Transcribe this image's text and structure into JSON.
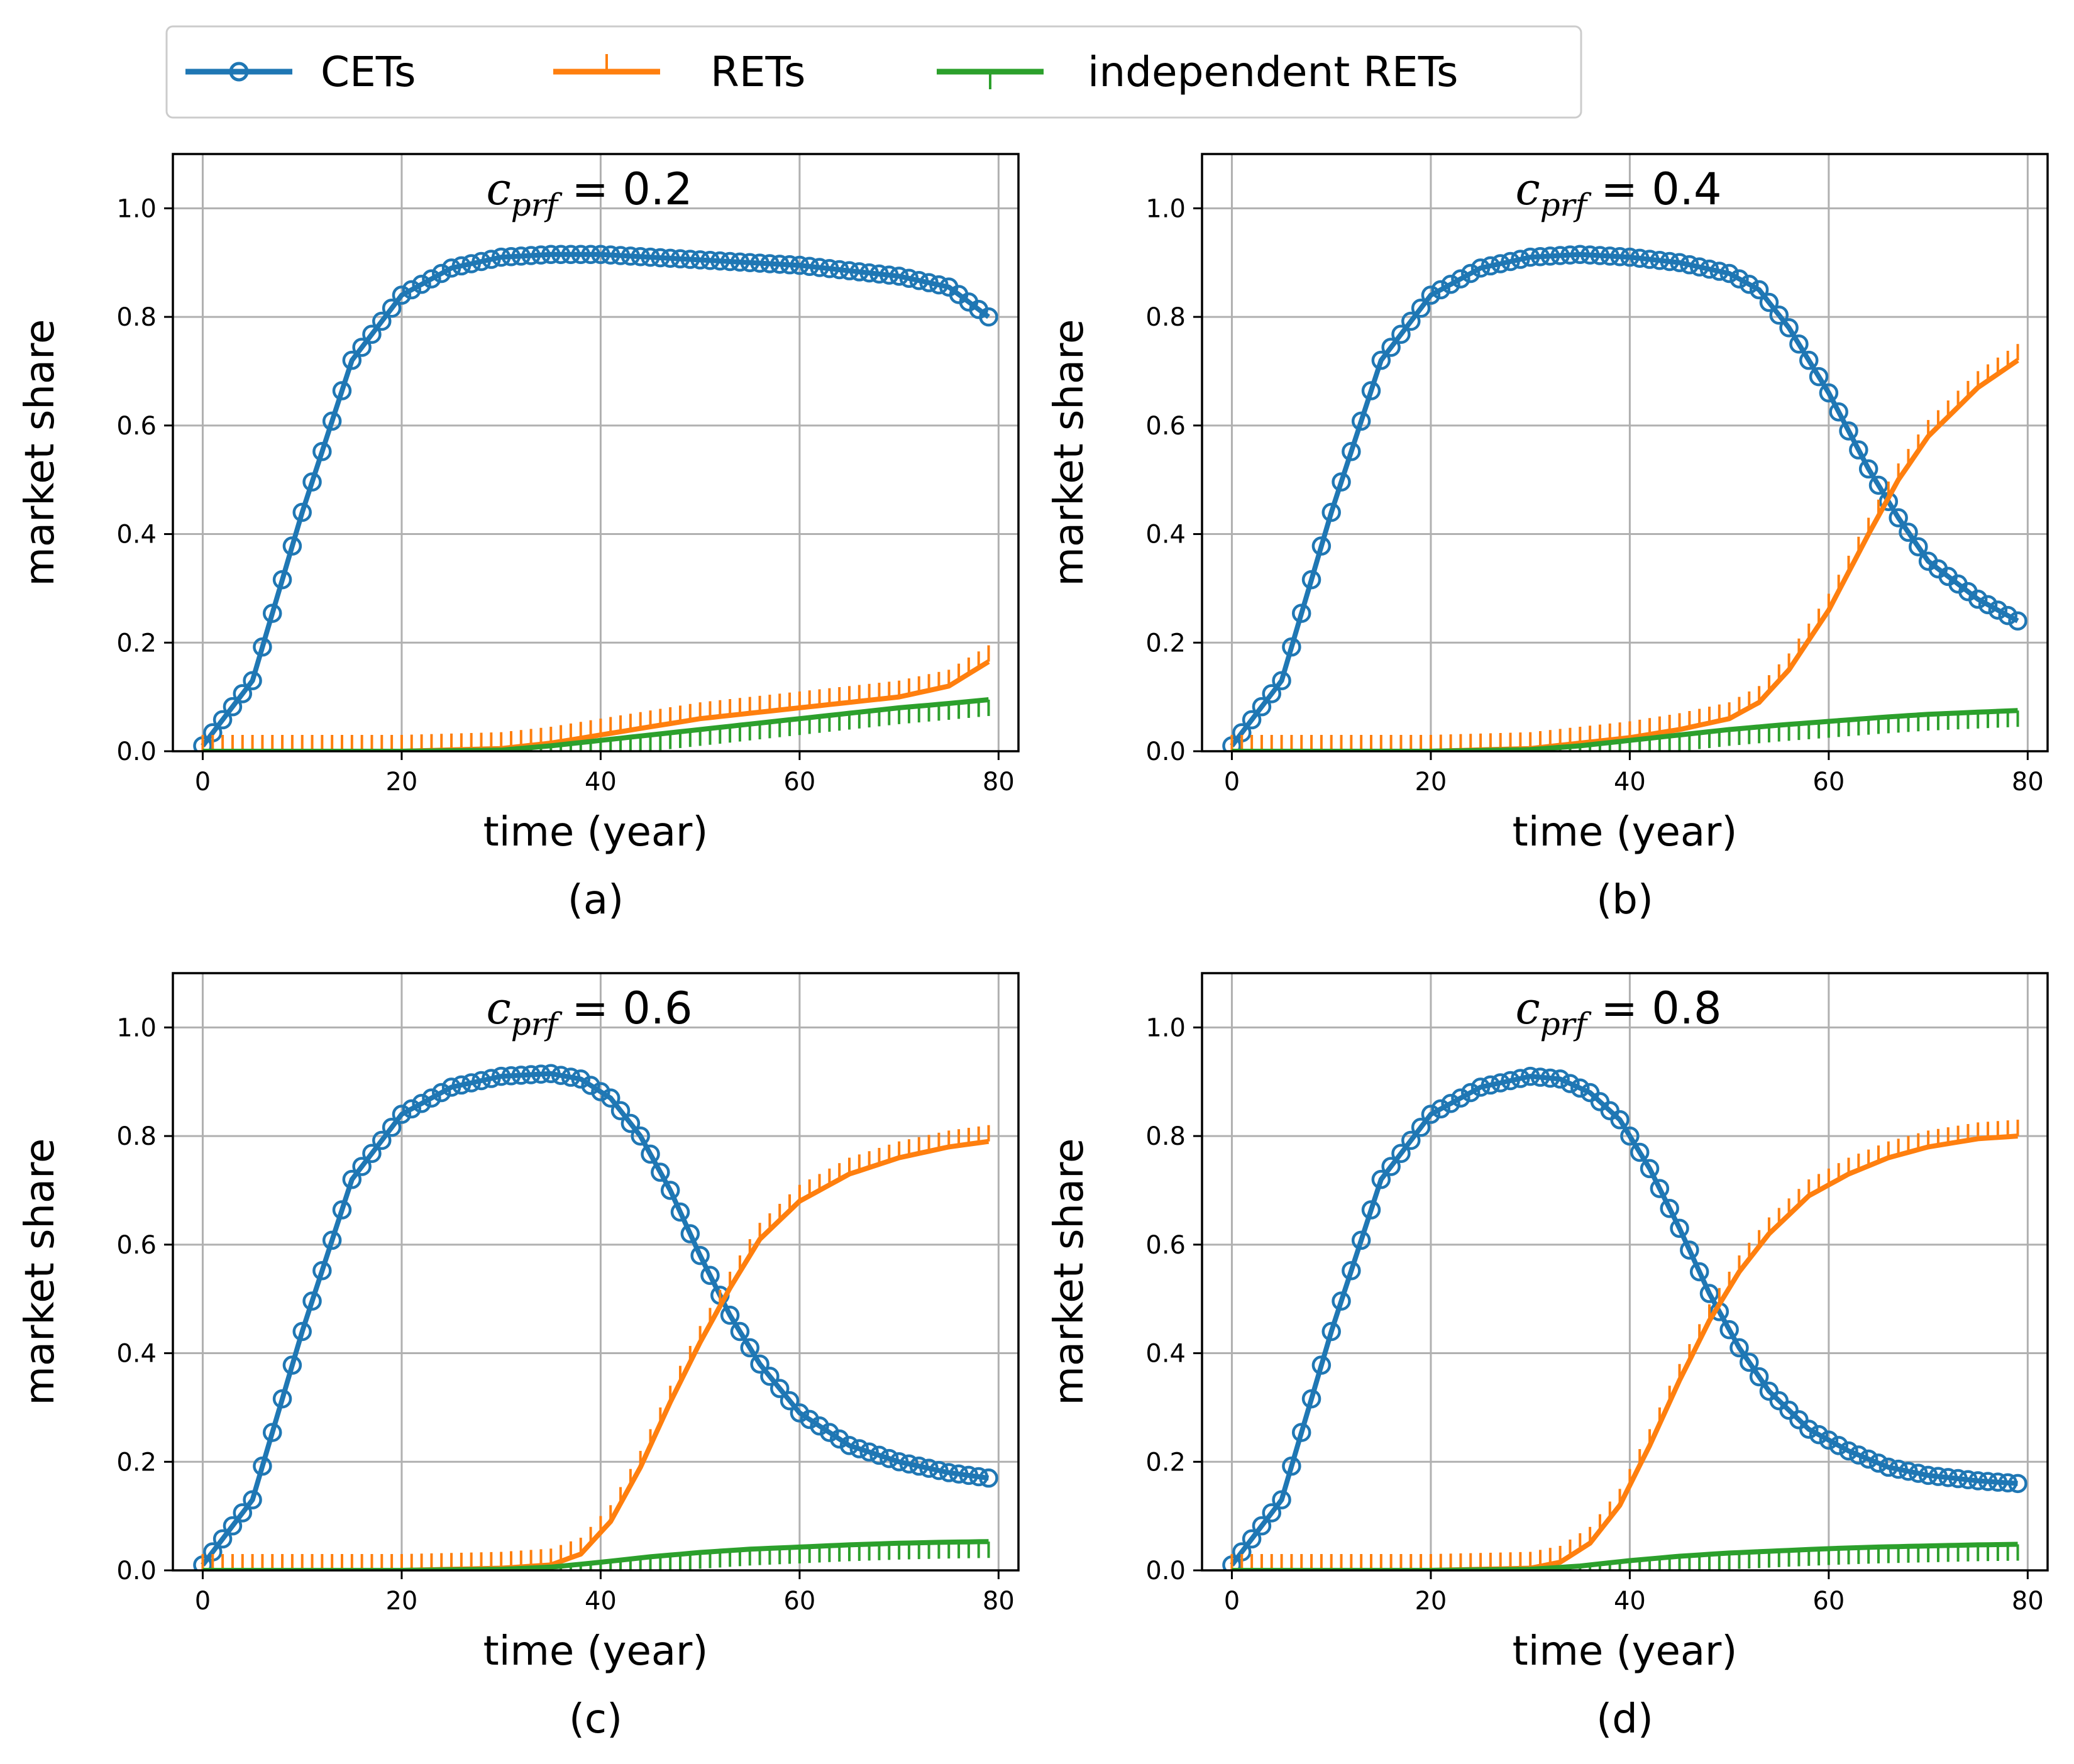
{
  "legend": {
    "items": [
      {
        "label": "CETs",
        "color": "#1f77b4",
        "marker": "circle"
      },
      {
        "label": "RETs",
        "color": "#ff7f0e",
        "marker": "tick-up"
      },
      {
        "label": "independent RETs",
        "color": "#2ca02c",
        "marker": "tick-down"
      }
    ]
  },
  "chart_data": [
    {
      "type": "line",
      "panel_label": "(a)",
      "title_var": "c",
      "title_sub": "prf",
      "title_val": "0.2",
      "xlabel": "time (year)",
      "ylabel": "market share",
      "xlim": [
        -3,
        82
      ],
      "ylim": [
        0,
        1.1
      ],
      "xticks": [
        0,
        20,
        40,
        60,
        80
      ],
      "yticks": [
        0.0,
        0.2,
        0.4,
        0.6,
        0.8,
        1.0
      ],
      "grid": true,
      "series": [
        {
          "name": "CETs",
          "x": [
            0,
            5,
            10,
            15,
            20,
            25,
            30,
            35,
            40,
            45,
            50,
            55,
            60,
            65,
            70,
            75,
            79
          ],
          "y": [
            0.01,
            0.13,
            0.44,
            0.72,
            0.84,
            0.89,
            0.91,
            0.915,
            0.915,
            0.91,
            0.905,
            0.9,
            0.895,
            0.885,
            0.875,
            0.855,
            0.8
          ]
        },
        {
          "name": "RETs",
          "x": [
            0,
            10,
            20,
            30,
            35,
            40,
            45,
            50,
            55,
            60,
            65,
            70,
            75,
            79
          ],
          "y": [
            0.0,
            0.0,
            0.0,
            0.005,
            0.015,
            0.03,
            0.045,
            0.06,
            0.07,
            0.08,
            0.09,
            0.1,
            0.12,
            0.165
          ]
        },
        {
          "name": "independent RETs",
          "x": [
            0,
            10,
            20,
            30,
            35,
            40,
            45,
            50,
            55,
            60,
            65,
            70,
            75,
            79
          ],
          "y": [
            0.0,
            0.0,
            0.0,
            0.002,
            0.01,
            0.02,
            0.03,
            0.04,
            0.05,
            0.06,
            0.07,
            0.08,
            0.088,
            0.095
          ]
        }
      ]
    },
    {
      "type": "line",
      "panel_label": "(b)",
      "title_var": "c",
      "title_sub": "prf",
      "title_val": "0.4",
      "xlabel": "time (year)",
      "ylabel": "market share",
      "xlim": [
        -3,
        82
      ],
      "ylim": [
        0,
        1.1
      ],
      "xticks": [
        0,
        20,
        40,
        60,
        80
      ],
      "yticks": [
        0.0,
        0.2,
        0.4,
        0.6,
        0.8,
        1.0
      ],
      "grid": true,
      "series": [
        {
          "name": "CETs",
          "x": [
            0,
            5,
            10,
            15,
            20,
            25,
            30,
            35,
            40,
            45,
            50,
            53,
            56,
            60,
            64,
            67,
            70,
            75,
            79
          ],
          "y": [
            0.01,
            0.13,
            0.44,
            0.72,
            0.84,
            0.89,
            0.91,
            0.915,
            0.91,
            0.9,
            0.88,
            0.85,
            0.78,
            0.66,
            0.52,
            0.43,
            0.35,
            0.28,
            0.24
          ]
        },
        {
          "name": "RETs",
          "x": [
            0,
            10,
            20,
            30,
            35,
            40,
            45,
            50,
            53,
            56,
            60,
            64,
            67,
            70,
            75,
            79
          ],
          "y": [
            0.0,
            0.0,
            0.0,
            0.005,
            0.015,
            0.025,
            0.04,
            0.06,
            0.09,
            0.15,
            0.26,
            0.4,
            0.5,
            0.58,
            0.67,
            0.72
          ]
        },
        {
          "name": "independent RETs",
          "x": [
            0,
            10,
            20,
            30,
            35,
            40,
            45,
            50,
            55,
            60,
            65,
            70,
            75,
            79
          ],
          "y": [
            0.0,
            0.0,
            0.0,
            0.003,
            0.01,
            0.02,
            0.03,
            0.04,
            0.048,
            0.055,
            0.062,
            0.068,
            0.072,
            0.075
          ]
        }
      ]
    },
    {
      "type": "line",
      "panel_label": "(c)",
      "title_var": "c",
      "title_sub": "prf",
      "title_val": "0.6",
      "xlabel": "time (year)",
      "ylabel": "market share",
      "xlim": [
        -3,
        82
      ],
      "ylim": [
        0,
        1.1
      ],
      "xticks": [
        0,
        20,
        40,
        60,
        80
      ],
      "yticks": [
        0.0,
        0.2,
        0.4,
        0.6,
        0.8,
        1.0
      ],
      "grid": true,
      "series": [
        {
          "name": "CETs",
          "x": [
            0,
            5,
            10,
            15,
            20,
            25,
            30,
            35,
            38,
            41,
            44,
            47,
            50,
            53,
            56,
            60,
            65,
            70,
            75,
            79
          ],
          "y": [
            0.01,
            0.13,
            0.44,
            0.72,
            0.84,
            0.89,
            0.91,
            0.915,
            0.905,
            0.87,
            0.8,
            0.7,
            0.58,
            0.47,
            0.38,
            0.29,
            0.23,
            0.2,
            0.18,
            0.17
          ]
        },
        {
          "name": "RETs",
          "x": [
            0,
            10,
            20,
            30,
            35,
            38,
            41,
            44,
            47,
            50,
            53,
            56,
            60,
            65,
            70,
            75,
            79
          ],
          "y": [
            0.0,
            0.0,
            0.0,
            0.004,
            0.01,
            0.03,
            0.09,
            0.19,
            0.31,
            0.42,
            0.52,
            0.61,
            0.68,
            0.73,
            0.76,
            0.78,
            0.79
          ]
        },
        {
          "name": "independent RETs",
          "x": [
            0,
            10,
            20,
            30,
            35,
            40,
            45,
            50,
            55,
            60,
            65,
            70,
            75,
            79
          ],
          "y": [
            0.0,
            0.0,
            0.0,
            0.002,
            0.006,
            0.015,
            0.025,
            0.033,
            0.039,
            0.043,
            0.047,
            0.05,
            0.052,
            0.053
          ]
        }
      ]
    },
    {
      "type": "line",
      "panel_label": "(d)",
      "title_var": "c",
      "title_sub": "prf",
      "title_val": "0.8",
      "xlabel": "time (year)",
      "ylabel": "market share",
      "xlim": [
        -3,
        82
      ],
      "ylim": [
        0,
        1.1
      ],
      "xticks": [
        0,
        20,
        40,
        60,
        80
      ],
      "yticks": [
        0.0,
        0.2,
        0.4,
        0.6,
        0.8,
        1.0
      ],
      "grid": true,
      "series": [
        {
          "name": "CETs",
          "x": [
            0,
            5,
            10,
            15,
            20,
            25,
            30,
            33,
            36,
            39,
            42,
            45,
            48,
            51,
            54,
            58,
            62,
            66,
            70,
            75,
            79
          ],
          "y": [
            0.01,
            0.13,
            0.44,
            0.72,
            0.84,
            0.89,
            0.91,
            0.905,
            0.88,
            0.83,
            0.74,
            0.63,
            0.51,
            0.41,
            0.33,
            0.26,
            0.22,
            0.19,
            0.175,
            0.165,
            0.16
          ]
        },
        {
          "name": "RETs",
          "x": [
            0,
            10,
            20,
            30,
            33,
            36,
            39,
            42,
            45,
            48,
            51,
            54,
            58,
            62,
            66,
            70,
            75,
            79
          ],
          "y": [
            0.0,
            0.0,
            0.0,
            0.004,
            0.015,
            0.05,
            0.12,
            0.23,
            0.35,
            0.46,
            0.55,
            0.62,
            0.69,
            0.73,
            0.76,
            0.78,
            0.795,
            0.8
          ]
        },
        {
          "name": "independent RETs",
          "x": [
            0,
            10,
            20,
            30,
            35,
            40,
            45,
            50,
            55,
            60,
            65,
            70,
            75,
            79
          ],
          "y": [
            0.0,
            0.0,
            0.0,
            0.002,
            0.008,
            0.018,
            0.026,
            0.032,
            0.036,
            0.04,
            0.043,
            0.045,
            0.047,
            0.048
          ]
        }
      ]
    }
  ]
}
